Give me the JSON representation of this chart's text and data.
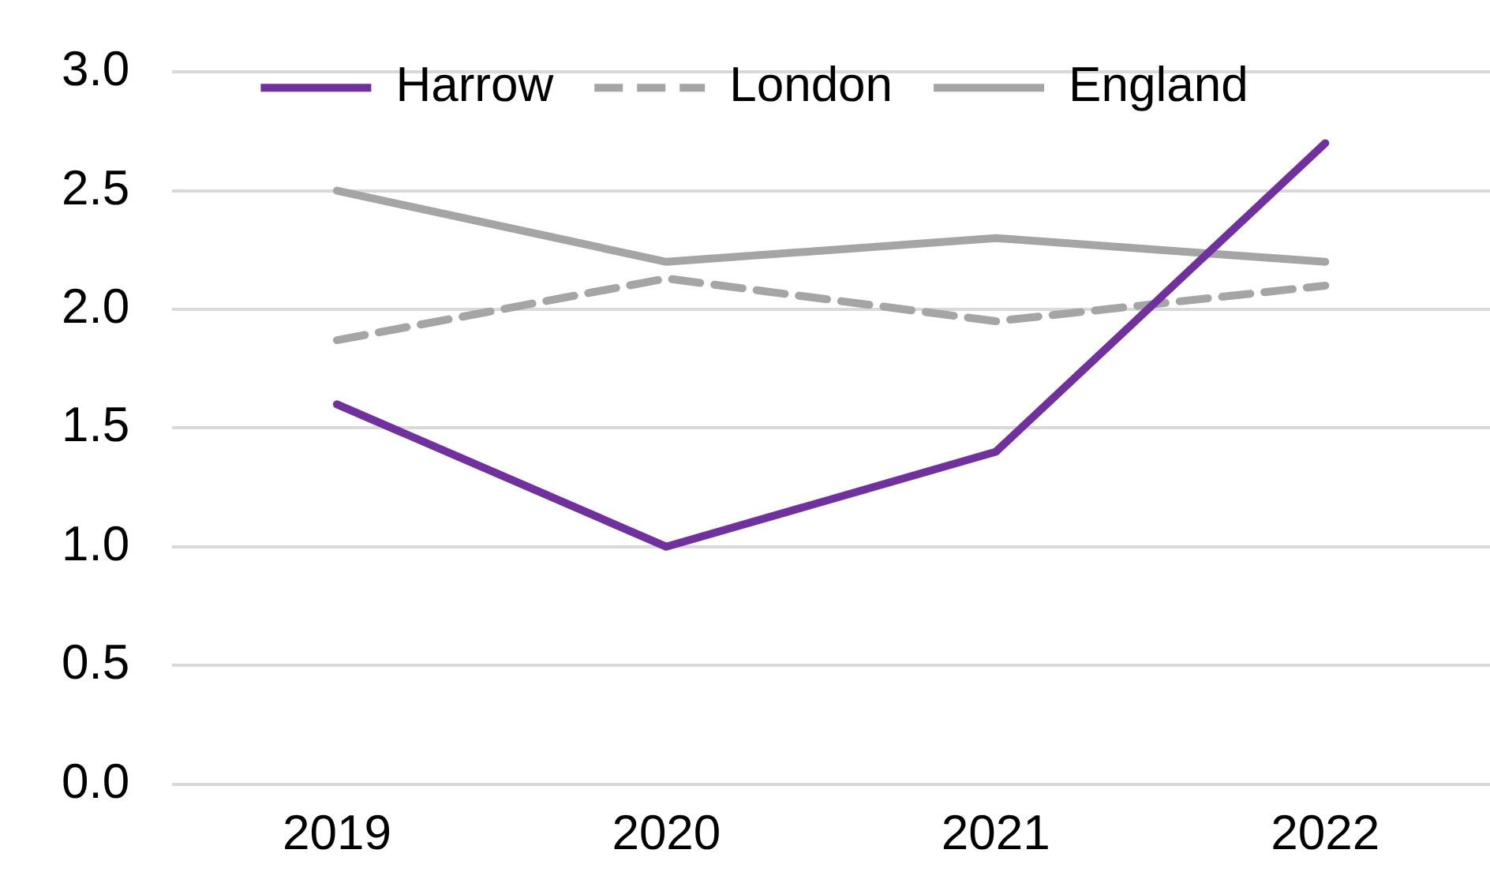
{
  "chart_data": {
    "type": "line",
    "categories": [
      "2019",
      "2020",
      "2021",
      "2022"
    ],
    "series": [
      {
        "name": "Harrow",
        "color": "#7030a0",
        "line_style": "solid",
        "values": [
          1.6,
          1.0,
          1.4,
          2.7
        ]
      },
      {
        "name": "London",
        "color": "#a5a5a5",
        "line_style": "dashed",
        "values": [
          1.87,
          2.13,
          1.95,
          2.1
        ]
      },
      {
        "name": "England",
        "color": "#a5a5a5",
        "line_style": "solid",
        "values": [
          2.5,
          2.2,
          2.3,
          2.2
        ]
      }
    ],
    "ylim": [
      0,
      3
    ],
    "yticks": [
      {
        "value": 0,
        "label": "0.0"
      },
      {
        "value": 0.5,
        "label": "0.5"
      },
      {
        "value": 1,
        "label": "1.0"
      },
      {
        "value": 1.5,
        "label": "1.5"
      },
      {
        "value": 2,
        "label": "2.0"
      },
      {
        "value": 2.5,
        "label": "2.5"
      },
      {
        "value": 3,
        "label": "3.0"
      }
    ],
    "grid": "y",
    "legend": "top",
    "marker": "none"
  }
}
